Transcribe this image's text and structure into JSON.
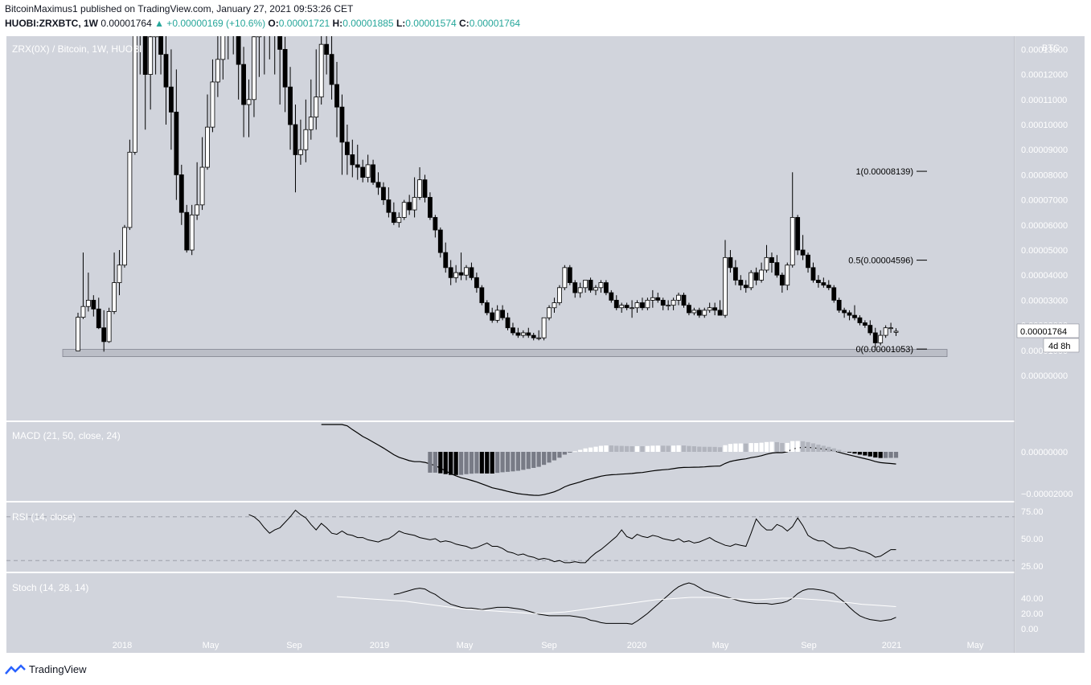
{
  "header": {
    "line1": "BitcoinMaximus1 published on TradingView.com, January 27, 2021 09:53:26 CET",
    "symbol": "HUOBI:ZRXBTC, 1W",
    "price": "0.00001764",
    "change": "▲ +0.00000169 (+10.6%)",
    "o_label": "O:",
    "o_val": "0.00001721",
    "h_label": "H:",
    "h_val": "0.00001885",
    "l_label": "L:",
    "l_val": "0.00001574",
    "c_label": "C:",
    "c_val": "0.00001764"
  },
  "price_pane": {
    "legend": "ZRX(0X) / Bitcoin, 1W, HUOBI",
    "currency": "BTC",
    "ticks": [
      "0.00013000",
      "0.00012000",
      "0.00011000",
      "0.00010000",
      "0.00009000",
      "0.00008000",
      "0.00007000",
      "0.00006000",
      "0.00005000",
      "0.00004000",
      "0.00003000",
      "0.00002000",
      "0.00001000",
      "0.00000000"
    ],
    "last_price_label": "0.00001764",
    "countdown": "4d 8h",
    "fib_levels": [
      {
        "label": "1(0.00008139)",
        "value": 8.139e-05
      },
      {
        "label": "0.5(0.00004596)",
        "value": 4.596e-05
      },
      {
        "label": "0(0.00001053)",
        "value": 1.053e-05
      }
    ],
    "support_zone": [
      7.5e-06,
      1.04e-05
    ]
  },
  "macd_pane": {
    "legend": "MACD (21, 50, close, 24)",
    "ticks": [
      "0.00000000",
      "−0.00002000"
    ]
  },
  "rsi_pane": {
    "legend": "RSI (14, close)",
    "ticks": [
      "75.00",
      "50.00",
      "25.00"
    ]
  },
  "stoch_pane": {
    "legend": "Stoch (14, 28, 14)",
    "ticks": [
      "40.00",
      "20.00",
      "0.00"
    ]
  },
  "x_axis": [
    "2018",
    "May",
    "Sep",
    "2019",
    "May",
    "Sep",
    "2020",
    "May",
    "Sep",
    "2021",
    "May"
  ],
  "footer": {
    "brand": "TradingView"
  },
  "colors": {
    "pane_bg": "#d1d4dc",
    "bull": "#ffffff",
    "bear": "#000000",
    "teal": "#26a69a"
  },
  "chart_data": {
    "type": "candlestick",
    "timeframe": "1W",
    "first_week": "2017-10-16",
    "y_price_range": [
      0,
      0.000142
    ],
    "candles": [
      [
        9.8e-06,
        2.5e-05,
        9.8e-06,
        2.32e-05
      ],
      [
        2.32e-05,
        4.9e-05,
        2.25e-05,
        2.75e-05
      ],
      [
        2.75e-05,
        4.1e-05,
        2.55e-05,
        3e-05
      ],
      [
        3e-05,
        3.2e-05,
        2.35e-05,
        2.65e-05
      ],
      [
        2.65e-05,
        3.1e-05,
        1.85e-05,
        1.9e-05
      ],
      [
        1.9e-05,
        2.6e-05,
        9.5e-06,
        1.35e-05
      ],
      [
        1.35e-05,
        2.7e-05,
        1.3e-05,
        2.55e-05
      ],
      [
        2.55e-05,
        4.9e-05,
        2.45e-05,
        3.7e-05
      ],
      [
        3.7e-05,
        5e-05,
        3.2e-05,
        4.4e-05
      ],
      [
        4.4e-05,
        6e-05,
        4.3e-05,
        5.9e-05
      ],
      [
        5.9e-05,
        9.4e-05,
        5.8e-05,
        8.9e-05
      ],
      [
        8.9e-05,
        0.000142,
        8.8e-05,
        0.000142
      ],
      [
        0.000142,
        0.000142,
        0.00012,
        0.00014
      ],
      [
        0.00014,
        0.000142,
        9.8e-05,
        0.00012
      ],
      [
        0.00012,
        0.000142,
        0.000106,
        0.000135
      ],
      [
        0.000135,
        0.000142,
        0.00012,
        0.000138
      ],
      [
        0.000138,
        0.000142,
        0.00012,
        0.000128
      ],
      [
        0.000128,
        0.000142,
        0.0001,
        0.000115
      ],
      [
        0.000115,
        0.00013,
        9e-05,
        0.000105
      ],
      [
        0.000105,
        0.000122,
        7e-05,
        8e-05
      ],
      [
        8e-05,
        8.4e-05,
        6e-05,
        6.5e-05
      ],
      [
        6.5e-05,
        6.8e-05,
        4.9e-05,
        5e-05
      ],
      [
        5e-05,
        6.8e-05,
        4.8e-05,
        6.4e-05
      ],
      [
        6.4e-05,
        8.5e-05,
        6.2e-05,
        6.8e-05
      ],
      [
        6.8e-05,
        9.5e-05,
        6.6e-05,
        8.3e-05
      ],
      [
        8.3e-05,
        0.000112,
        8.2e-05,
        9.9e-05
      ],
      [
        9.9e-05,
        0.000126,
        9.7e-05,
        0.000117
      ],
      [
        0.000117,
        0.000142,
        0.000111,
        0.000126
      ],
      [
        0.000126,
        0.000142,
        0.000118,
        0.000142
      ],
      [
        0.000142,
        0.000142,
        0.000126,
        0.00014
      ],
      [
        0.00014,
        0.000142,
        0.000128,
        0.000142
      ],
      [
        0.000142,
        0.000142,
        0.00011,
        0.000124
      ],
      [
        0.000124,
        0.000131,
        9.5e-05,
        0.000108
      ],
      [
        0.000108,
        0.000118,
        9.5e-05,
        0.00011
      ],
      [
        0.00011,
        0.000142,
        0.000103,
        0.000135
      ],
      [
        0.000135,
        0.000142,
        0.000119,
        0.000136
      ],
      [
        0.000136,
        0.000142,
        0.00012,
        0.000142
      ],
      [
        0.000142,
        0.000142,
        0.000126,
        0.00014
      ],
      [
        0.00014,
        0.000142,
        0.00012,
        0.000138
      ],
      [
        0.000138,
        0.000142,
        0.000108,
        0.00013
      ],
      [
        0.00013,
        0.000135,
        0.000105,
        0.000115
      ],
      [
        0.000115,
        0.000123,
        9e-05,
        0.0001
      ],
      [
        0.0001,
        0.000108,
        7.3e-05,
        8.8e-05
      ],
      [
        8.8e-05,
        0.000102,
        8.4e-05,
        9e-05
      ],
      [
        9e-05,
        0.00011,
        8.5e-05,
        9.8e-05
      ],
      [
        9.8e-05,
        0.000118,
        9.4e-05,
        0.000103
      ],
      [
        0.000103,
        0.00013,
        9.8e-05,
        0.000111
      ],
      [
        0.000111,
        0.000142,
        0.000108,
        0.000132
      ],
      [
        0.000132,
        0.000142,
        0.00012,
        0.000128
      ],
      [
        0.000128,
        0.000138,
        0.00011,
        0.000116
      ],
      [
        0.000116,
        0.000125,
        9.5e-05,
        0.000107
      ],
      [
        0.000107,
        0.000112,
        8e-05,
        9.3e-05
      ],
      [
        9.3e-05,
        0.0001,
        8e-05,
        8.8e-05
      ],
      [
        8.8e-05,
        9.4e-05,
        7.9e-05,
        8.4e-05
      ],
      [
        8.4e-05,
        9.2e-05,
        7.8e-05,
        8.3e-05
      ],
      [
        8.3e-05,
        8.6e-05,
        7.7e-05,
        7.9e-05
      ],
      [
        7.9e-05,
        8.8e-05,
        7.7e-05,
        8.4e-05
      ],
      [
        8.4e-05,
        8.6e-05,
        7.6e-05,
        7.7e-05
      ],
      [
        7.7e-05,
        8.1e-05,
        7.2e-05,
        7.5e-05
      ],
      [
        7.5e-05,
        7.7e-05,
        6.8e-05,
        7e-05
      ],
      [
        7e-05,
        7.5e-05,
        6.3e-05,
        6.5e-05
      ],
      [
        6.5e-05,
        6.9e-05,
        6e-05,
        6.1e-05
      ],
      [
        6.1e-05,
        6.5e-05,
        5.9e-05,
        6.3e-05
      ],
      [
        6.3e-05,
        7e-05,
        6.2e-05,
        6.9e-05
      ],
      [
        6.9e-05,
        7.2e-05,
        6.4e-05,
        6.6e-05
      ],
      [
        6.6e-05,
        7.9e-05,
        6.3e-05,
        7.1e-05
      ],
      [
        7.1e-05,
        8.3e-05,
        7e-05,
        7.8e-05
      ],
      [
        7.8e-05,
        8e-05,
        6.9e-05,
        7.1e-05
      ],
      [
        7.1e-05,
        7.3e-05,
        6.2e-05,
        6.3e-05
      ],
      [
        6.3e-05,
        6.4e-05,
        5.5e-05,
        5.8e-05
      ],
      [
        5.8e-05,
        5.9e-05,
        4.7e-05,
        4.9e-05
      ],
      [
        4.9e-05,
        5.3e-05,
        4.1e-05,
        4.3e-05
      ],
      [
        4.3e-05,
        4.6e-05,
        3.6e-05,
        3.9e-05
      ],
      [
        3.9e-05,
        4.4e-05,
        3.7e-05,
        4.1e-05
      ],
      [
        4.1e-05,
        4.9e-05,
        3.8e-05,
        4e-05
      ],
      [
        4e-05,
        4.4e-05,
        3.8e-05,
        4.3e-05
      ],
      [
        4.3e-05,
        4.5e-05,
        3.8e-05,
        3.9e-05
      ],
      [
        3.9e-05,
        4.1e-05,
        3.3e-05,
        3.5e-05
      ],
      [
        3.5e-05,
        3.6e-05,
        2.8e-05,
        2.9e-05
      ],
      [
        2.9e-05,
        3e-05,
        2.4e-05,
        2.5e-05
      ],
      [
        2.5e-05,
        2.7e-05,
        2.1e-05,
        2.2e-05
      ],
      [
        2.2e-05,
        2.8e-05,
        2.1e-05,
        2.6e-05
      ],
      [
        2.6e-05,
        2.8e-05,
        2.2e-05,
        2.3e-05
      ],
      [
        2.3e-05,
        2.5e-05,
        1.8e-05,
        1.9e-05
      ],
      [
        1.9e-05,
        2.1e-05,
        1.6e-05,
        1.7e-05
      ],
      [
        1.7e-05,
        1.9e-05,
        1.5e-05,
        1.6e-05
      ],
      [
        1.6e-05,
        1.8e-05,
        1.5e-05,
        1.7e-05
      ],
      [
        1.7e-05,
        1.9e-05,
        1.5e-05,
        1.6e-05
      ],
      [
        1.6e-05,
        1.7e-05,
        1.4e-05,
        1.5e-05
      ],
      [
        1.5e-05,
        1.8e-05,
        1.4e-05,
        1.5e-05
      ],
      [
        1.5e-05,
        2.3e-05,
        1.4e-05,
        2.3e-05
      ],
      [
        2.3e-05,
        2.8e-05,
        2.2e-05,
        2.7e-05
      ],
      [
        2.7e-05,
        3.1e-05,
        2.5e-05,
        2.9e-05
      ],
      [
        2.9e-05,
        3.6e-05,
        2.8e-05,
        3.5e-05
      ],
      [
        3.5e-05,
        4.4e-05,
        3.4e-05,
        4.3e-05
      ],
      [
        4.3e-05,
        4.4e-05,
        3.6e-05,
        3.7e-05
      ],
      [
        3.7e-05,
        3.8e-05,
        3.1e-05,
        3.3e-05
      ],
      [
        3.3e-05,
        3.7e-05,
        3.1e-05,
        3.5e-05
      ],
      [
        3.5e-05,
        3.8e-05,
        3.3e-05,
        3.8e-05
      ],
      [
        3.8e-05,
        3.9e-05,
        3.3e-05,
        3.4e-05
      ],
      [
        3.4e-05,
        3.6e-05,
        3.2e-05,
        3.5e-05
      ],
      [
        3.5e-05,
        3.8e-05,
        3.3e-05,
        3.7e-05
      ],
      [
        3.7e-05,
        3.8e-05,
        3.2e-05,
        3.3e-05
      ],
      [
        3.3e-05,
        3.4e-05,
        2.9e-05,
        3e-05
      ],
      [
        3e-05,
        3.2e-05,
        2.6e-05,
        2.7e-05
      ],
      [
        2.7e-05,
        2.9e-05,
        2.5e-05,
        2.8e-05
      ],
      [
        2.8e-05,
        2.9e-05,
        2.6e-05,
        2.7e-05
      ],
      [
        2.7e-05,
        3e-05,
        2.3e-05,
        2.7e-05
      ],
      [
        2.7e-05,
        3e-05,
        2.5e-05,
        2.9e-05
      ],
      [
        2.9e-05,
        3.1e-05,
        2.6e-05,
        2.7e-05
      ],
      [
        2.7e-05,
        3.1e-05,
        2.6e-05,
        3e-05
      ],
      [
        3e-05,
        3.4e-05,
        2.7e-05,
        3.1e-05
      ],
      [
        3.1e-05,
        3.3e-05,
        2.9e-05,
        3e-05
      ],
      [
        3e-05,
        3.1e-05,
        2.6e-05,
        2.8e-05
      ],
      [
        2.8e-05,
        3e-05,
        2.6e-05,
        2.8e-05
      ],
      [
        2.8e-05,
        3.1e-05,
        2.6e-05,
        3e-05
      ],
      [
        3e-05,
        3.3e-05,
        2.8e-05,
        3.2e-05
      ],
      [
        3.2e-05,
        3.3e-05,
        2.7e-05,
        2.8e-05
      ],
      [
        2.8e-05,
        2.9e-05,
        2.4e-05,
        2.5e-05
      ],
      [
        2.5e-05,
        2.7e-05,
        2.4e-05,
        2.6e-05
      ],
      [
        2.6e-05,
        2.7e-05,
        2.3e-05,
        2.4e-05
      ],
      [
        2.4e-05,
        2.7e-05,
        2.3e-05,
        2.6e-05
      ],
      [
        2.6e-05,
        2.9e-05,
        2.5e-05,
        2.7e-05
      ],
      [
        2.7e-05,
        2.9e-05,
        2.4e-05,
        2.6e-05
      ],
      [
        2.6e-05,
        3e-05,
        2.4e-05,
        2.4e-05
      ],
      [
        2.4e-05,
        5.4e-05,
        2.3e-05,
        4.7e-05
      ],
      [
        4.7e-05,
        5e-05,
        4.1e-05,
        4.3e-05
      ],
      [
        4.3e-05,
        4.6e-05,
        3.6e-05,
        3.8e-05
      ],
      [
        3.8e-05,
        4e-05,
        3.4e-05,
        3.6e-05
      ],
      [
        3.6e-05,
        3.8e-05,
        3.3e-05,
        3.5e-05
      ],
      [
        3.5e-05,
        4.2e-05,
        3.4e-05,
        4.1e-05
      ],
      [
        4.1e-05,
        4.3e-05,
        3.6e-05,
        3.8e-05
      ],
      [
        3.8e-05,
        4.5e-05,
        3.7e-05,
        4.2e-05
      ],
      [
        4.2e-05,
        5.2e-05,
        4.1e-05,
        4.7e-05
      ],
      [
        4.7e-05,
        4.9e-05,
        4.1e-05,
        4.5e-05
      ],
      [
        4.5e-05,
        4.8e-05,
        3.9e-05,
        4e-05
      ],
      [
        4e-05,
        4.1e-05,
        3.3e-05,
        3.6e-05
      ],
      [
        3.6e-05,
        4.5e-05,
        3.4e-05,
        4.4e-05
      ],
      [
        4.4e-05,
        8.1e-05,
        4.3e-05,
        6.3e-05
      ],
      [
        6.3e-05,
        6.4e-05,
        4.8e-05,
        5e-05
      ],
      [
        5e-05,
        5.6e-05,
        4.6e-05,
        4.8e-05
      ],
      [
        4.8e-05,
        4.9e-05,
        4.1e-05,
        4.3e-05
      ],
      [
        4.3e-05,
        4.5e-05,
        3.7e-05,
        3.8e-05
      ],
      [
        3.8e-05,
        4e-05,
        3.5e-05,
        3.7e-05
      ],
      [
        3.7e-05,
        3.9e-05,
        3.5e-05,
        3.6e-05
      ],
      [
        3.6e-05,
        3.8e-05,
        3.4e-05,
        3.5e-05
      ],
      [
        3.5e-05,
        3.6e-05,
        2.9e-05,
        3e-05
      ],
      [
        3e-05,
        3.1e-05,
        2.5e-05,
        2.6e-05
      ],
      [
        2.6e-05,
        2.7e-05,
        2.3e-05,
        2.5e-05
      ],
      [
        2.5e-05,
        2.6e-05,
        2.2e-05,
        2.4e-05
      ],
      [
        2.4e-05,
        2.8e-05,
        2.2e-05,
        2.3e-05
      ],
      [
        2.3e-05,
        2.4e-05,
        2e-05,
        2.1e-05
      ],
      [
        2.1e-05,
        2.2e-05,
        1.9e-05,
        2e-05
      ],
      [
        2e-05,
        2.2e-05,
        1.6e-05,
        1.7e-05
      ],
      [
        1.7e-05,
        1.9e-05,
        1.1e-05,
        1.3e-05
      ],
      [
        1.3e-05,
        1.8e-05,
        1.2e-05,
        1.6e-05
      ],
      [
        1.6e-05,
        2e-05,
        1.5e-05,
        1.9e-05
      ],
      [
        1.9e-05,
        2.1e-05,
        1.7e-05,
        1.9e-05
      ],
      [
        1.72e-05,
        1.885e-05,
        1.574e-05,
        1.764e-05
      ]
    ],
    "rsi": [
      72,
      70,
      66,
      60,
      55,
      58,
      60,
      65,
      70,
      76,
      72,
      69,
      63,
      58,
      64,
      60,
      55,
      54,
      57,
      54,
      53,
      51,
      51,
      49,
      48,
      47,
      49,
      50,
      53,
      57,
      55,
      54,
      53,
      51,
      50,
      49,
      50,
      47,
      48,
      47,
      45,
      44,
      43,
      41,
      42,
      44,
      46,
      43,
      43,
      41,
      38,
      37,
      35,
      36,
      34,
      33,
      31,
      32,
      31,
      29,
      30,
      28,
      28,
      29,
      28,
      28,
      33,
      37,
      40,
      44,
      48,
      52,
      58,
      52,
      50,
      54,
      52,
      51,
      53,
      52,
      50,
      49,
      48,
      50,
      47,
      48,
      46,
      47,
      49,
      51,
      48,
      46,
      44,
      43,
      45,
      44,
      43,
      55,
      68,
      62,
      58,
      58,
      63,
      61,
      57,
      61,
      69,
      62,
      53,
      50,
      48,
      48,
      45,
      42,
      41,
      41,
      42,
      41,
      39,
      38,
      36,
      33,
      34,
      37,
      40,
      40
    ],
    "stoch_k": [
      45,
      46,
      48,
      50,
      52,
      53,
      52,
      48,
      45,
      40,
      36,
      32,
      30,
      28,
      27,
      27,
      26,
      25,
      26,
      27,
      28,
      28,
      28,
      27,
      26,
      25,
      23,
      21,
      19,
      18,
      17,
      17,
      17,
      17,
      17,
      16,
      15,
      14,
      11,
      10,
      8,
      7,
      7,
      7,
      7,
      7,
      6,
      10,
      15,
      20,
      26,
      32,
      38,
      44,
      50,
      55,
      58,
      60,
      58,
      54,
      50,
      48,
      46,
      44,
      42,
      40,
      38,
      36,
      35,
      34,
      33,
      33,
      33,
      32,
      33,
      34,
      36,
      40,
      46,
      50,
      52,
      52,
      51,
      50,
      48,
      46,
      40,
      35,
      28,
      22,
      17,
      14,
      12,
      11,
      10,
      11,
      12,
      15
    ],
    "stoch_d": [
      42,
      41,
      40,
      39,
      38,
      37,
      36,
      34,
      32,
      30,
      28,
      26,
      25,
      24,
      23,
      22,
      21,
      20,
      20,
      21,
      22,
      24,
      26,
      28,
      30,
      32,
      34,
      36,
      38,
      39,
      40,
      41,
      41,
      41,
      40,
      39,
      38,
      38,
      39,
      40,
      40,
      39,
      38,
      37,
      35,
      34,
      32,
      31,
      30,
      29
    ]
  }
}
